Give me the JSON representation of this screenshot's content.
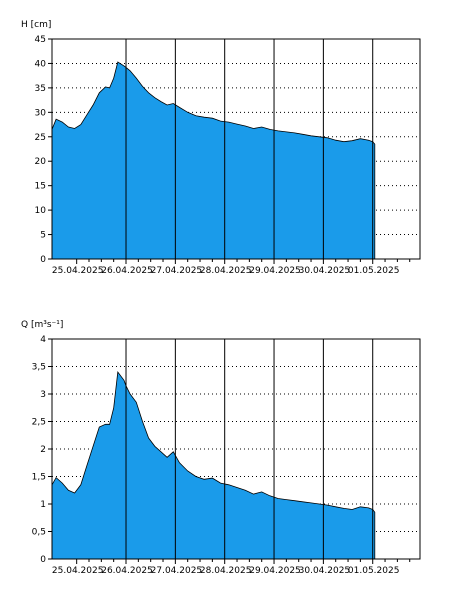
{
  "colors": {
    "fill": "#1a9bea",
    "line": "#000000",
    "grid": "#000000",
    "background": "#ffffff"
  },
  "chart_data": [
    {
      "type": "area",
      "ylabel": "H [cm]",
      "ylim": [
        0,
        45
      ],
      "yticks": [
        "0",
        "5",
        "10",
        "15",
        "20",
        "25",
        "30",
        "35",
        "40",
        "45"
      ],
      "xlim": [
        "2025-04-24 12:00",
        "2025-05-01 23:00"
      ],
      "xtick_labels": [
        "25.04.2025",
        "26.04.2025",
        "27.04.2025",
        "28.04.2025",
        "29.04.2025",
        "30.04.2025",
        "01.05.2025"
      ],
      "grid": "dotted horizontal, solid vertical at midnight",
      "x": [
        "2025-04-24 12:00",
        "2025-04-24 14:00",
        "2025-04-24 17:00",
        "2025-04-24 20:00",
        "2025-04-24 23:00",
        "2025-04-25 02:00",
        "2025-04-25 05:00",
        "2025-04-25 08:00",
        "2025-04-25 11:00",
        "2025-04-25 14:00",
        "2025-04-25 16:00",
        "2025-04-25 18:00",
        "2025-04-25 20:00",
        "2025-04-25 23:00",
        "2025-04-26 00:00",
        "2025-04-26 02:00",
        "2025-04-26 05:00",
        "2025-04-26 08:00",
        "2025-04-26 11:00",
        "2025-04-26 14:00",
        "2025-04-26 17:00",
        "2025-04-26 20:00",
        "2025-04-26 23:00",
        "2025-04-27 02:00",
        "2025-04-27 06:00",
        "2025-04-27 10:00",
        "2025-04-27 14:00",
        "2025-04-27 18:00",
        "2025-04-27 22:00",
        "2025-04-28 02:00",
        "2025-04-28 06:00",
        "2025-04-28 10:00",
        "2025-04-28 14:00",
        "2025-04-28 18:00",
        "2025-04-28 22:00",
        "2025-04-29 02:00",
        "2025-04-29 06:00",
        "2025-04-29 10:00",
        "2025-04-29 14:00",
        "2025-04-29 18:00",
        "2025-04-29 22:00",
        "2025-04-30 02:00",
        "2025-04-30 06:00",
        "2025-04-30 10:00",
        "2025-04-30 14:00",
        "2025-04-30 18:00",
        "2025-04-30 22:00",
        "2025-05-01 00:00",
        "2025-05-01 01:00"
      ],
      "values": [
        26.5,
        28.6,
        28.0,
        27.0,
        26.7,
        27.5,
        29.5,
        31.5,
        34.0,
        35.2,
        35.0,
        37.0,
        40.3,
        39.5,
        39.2,
        38.5,
        37.0,
        35.3,
        34.0,
        33.0,
        32.2,
        31.5,
        31.8,
        31.0,
        30.0,
        29.3,
        29.0,
        28.8,
        28.2,
        28.0,
        27.6,
        27.2,
        26.7,
        27.0,
        26.5,
        26.2,
        26.0,
        25.8,
        25.5,
        25.2,
        25.0,
        24.8,
        24.3,
        24.0,
        24.2,
        24.6,
        24.3,
        24.0,
        23.5
      ]
    },
    {
      "type": "area",
      "ylabel": "Q [m³s⁻¹]",
      "ylim": [
        0,
        4
      ],
      "yticks": [
        "0",
        "0,5",
        "1",
        "1,5",
        "2",
        "2,5",
        "3",
        "3,5",
        "4"
      ],
      "xlim": [
        "2025-04-24 12:00",
        "2025-05-01 23:00"
      ],
      "xtick_labels": [
        "25.04.2025",
        "26.04.2025",
        "27.04.2025",
        "28.04.2025",
        "29.04.2025",
        "30.04.2025",
        "01.05.2025"
      ],
      "grid": "dotted horizontal, solid vertical at midnight",
      "x": [
        "2025-04-24 12:00",
        "2025-04-24 14:00",
        "2025-04-24 17:00",
        "2025-04-24 20:00",
        "2025-04-24 23:00",
        "2025-04-25 02:00",
        "2025-04-25 05:00",
        "2025-04-25 08:00",
        "2025-04-25 11:00",
        "2025-04-25 14:00",
        "2025-04-25 16:00",
        "2025-04-25 18:00",
        "2025-04-25 20:00",
        "2025-04-25 23:00",
        "2025-04-26 00:00",
        "2025-04-26 02:00",
        "2025-04-26 05:00",
        "2025-04-26 08:00",
        "2025-04-26 11:00",
        "2025-04-26 14:00",
        "2025-04-26 17:00",
        "2025-04-26 20:00",
        "2025-04-26 23:00",
        "2025-04-27 02:00",
        "2025-04-27 06:00",
        "2025-04-27 10:00",
        "2025-04-27 14:00",
        "2025-04-27 18:00",
        "2025-04-27 22:00",
        "2025-04-28 02:00",
        "2025-04-28 06:00",
        "2025-04-28 10:00",
        "2025-04-28 14:00",
        "2025-04-28 18:00",
        "2025-04-28 22:00",
        "2025-04-29 02:00",
        "2025-04-29 06:00",
        "2025-04-29 10:00",
        "2025-04-29 14:00",
        "2025-04-29 18:00",
        "2025-04-29 22:00",
        "2025-04-30 02:00",
        "2025-04-30 06:00",
        "2025-04-30 10:00",
        "2025-04-30 14:00",
        "2025-04-30 18:00",
        "2025-04-30 22:00",
        "2025-05-01 00:00",
        "2025-05-01 01:00"
      ],
      "values": [
        1.35,
        1.48,
        1.38,
        1.25,
        1.2,
        1.35,
        1.7,
        2.05,
        2.4,
        2.45,
        2.45,
        2.75,
        3.4,
        3.25,
        3.15,
        3.0,
        2.85,
        2.5,
        2.2,
        2.05,
        1.95,
        1.85,
        1.95,
        1.75,
        1.6,
        1.5,
        1.45,
        1.47,
        1.38,
        1.35,
        1.3,
        1.25,
        1.18,
        1.22,
        1.15,
        1.1,
        1.08,
        1.06,
        1.04,
        1.02,
        1.0,
        0.98,
        0.95,
        0.92,
        0.9,
        0.95,
        0.93,
        0.9,
        0.85
      ]
    }
  ]
}
